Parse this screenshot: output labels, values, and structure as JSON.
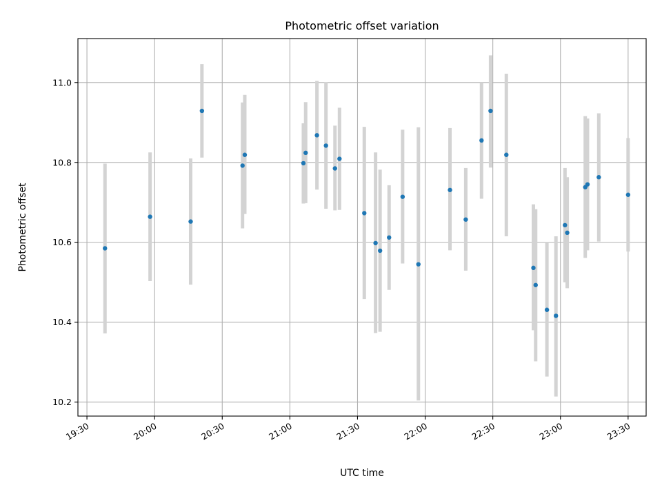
{
  "chart_data": {
    "type": "scatter",
    "title": "Photometric offset variation",
    "xlabel": "UTC time",
    "ylabel": "Photometric offset",
    "x_ticks": [
      "19:30",
      "20:00",
      "20:30",
      "21:00",
      "21:30",
      "22:00",
      "22:30",
      "23:00",
      "23:30"
    ],
    "y_ticks": [
      "10.2",
      "10.4",
      "10.6",
      "10.8",
      "11.0"
    ],
    "xlim": [
      "19:26",
      "23:38"
    ],
    "ylim": [
      10.165,
      11.11
    ],
    "grid": true,
    "colors": {
      "point": "#1f77b4",
      "errorbar": "#d3d3d3",
      "grid": "#b0b0b0"
    },
    "points": [
      {
        "t": "19:38",
        "y": 10.585,
        "lo": 10.372,
        "hi": 10.797
      },
      {
        "t": "19:58",
        "y": 10.664,
        "lo": 10.503,
        "hi": 10.825
      },
      {
        "t": "20:16",
        "y": 10.652,
        "lo": 10.494,
        "hi": 10.81
      },
      {
        "t": "20:21",
        "y": 10.929,
        "lo": 10.812,
        "hi": 11.046
      },
      {
        "t": "20:39",
        "y": 10.792,
        "lo": 10.635,
        "hi": 10.95
      },
      {
        "t": "20:40",
        "y": 10.819,
        "lo": 10.671,
        "hi": 10.969
      },
      {
        "t": "21:06",
        "y": 10.798,
        "lo": 10.697,
        "hi": 10.898
      },
      {
        "t": "21:07",
        "y": 10.824,
        "lo": 10.698,
        "hi": 10.951
      },
      {
        "t": "21:12",
        "y": 10.868,
        "lo": 10.732,
        "hi": 11.004
      },
      {
        "t": "21:16",
        "y": 10.842,
        "lo": 10.684,
        "hi": 11.001
      },
      {
        "t": "21:20",
        "y": 10.785,
        "lo": 10.68,
        "hi": 10.892
      },
      {
        "t": "21:22",
        "y": 10.809,
        "lo": 10.681,
        "hi": 10.937
      },
      {
        "t": "21:33",
        "y": 10.673,
        "lo": 10.458,
        "hi": 10.889
      },
      {
        "t": "21:38",
        "y": 10.598,
        "lo": 10.373,
        "hi": 10.825
      },
      {
        "t": "21:40",
        "y": 10.579,
        "lo": 10.376,
        "hi": 10.782
      },
      {
        "t": "21:44",
        "y": 10.612,
        "lo": 10.481,
        "hi": 10.743
      },
      {
        "t": "21:50",
        "y": 10.714,
        "lo": 10.547,
        "hi": 10.882
      },
      {
        "t": "21:57",
        "y": 10.545,
        "lo": 10.204,
        "hi": 10.888
      },
      {
        "t": "22:11",
        "y": 10.731,
        "lo": 10.58,
        "hi": 10.886
      },
      {
        "t": "22:18",
        "y": 10.657,
        "lo": 10.529,
        "hi": 10.786
      },
      {
        "t": "22:25",
        "y": 10.855,
        "lo": 10.709,
        "hi": 11.0
      },
      {
        "t": "22:29",
        "y": 10.929,
        "lo": 10.787,
        "hi": 11.068
      },
      {
        "t": "22:36",
        "y": 10.819,
        "lo": 10.615,
        "hi": 11.022
      },
      {
        "t": "22:48",
        "y": 10.536,
        "lo": 10.38,
        "hi": 10.695
      },
      {
        "t": "22:49",
        "y": 10.493,
        "lo": 10.302,
        "hi": 10.683
      },
      {
        "t": "22:54",
        "y": 10.431,
        "lo": 10.264,
        "hi": 10.601
      },
      {
        "t": "22:58",
        "y": 10.416,
        "lo": 10.214,
        "hi": 10.615
      },
      {
        "t": "23:02",
        "y": 10.643,
        "lo": 10.5,
        "hi": 10.786
      },
      {
        "t": "23:03",
        "y": 10.624,
        "lo": 10.485,
        "hi": 10.763
      },
      {
        "t": "23:11",
        "y": 10.738,
        "lo": 10.561,
        "hi": 10.916
      },
      {
        "t": "23:12",
        "y": 10.745,
        "lo": 10.58,
        "hi": 10.91
      },
      {
        "t": "23:17",
        "y": 10.763,
        "lo": 10.602,
        "hi": 10.923
      },
      {
        "t": "23:30",
        "y": 10.719,
        "lo": 10.577,
        "hi": 10.861
      }
    ]
  }
}
